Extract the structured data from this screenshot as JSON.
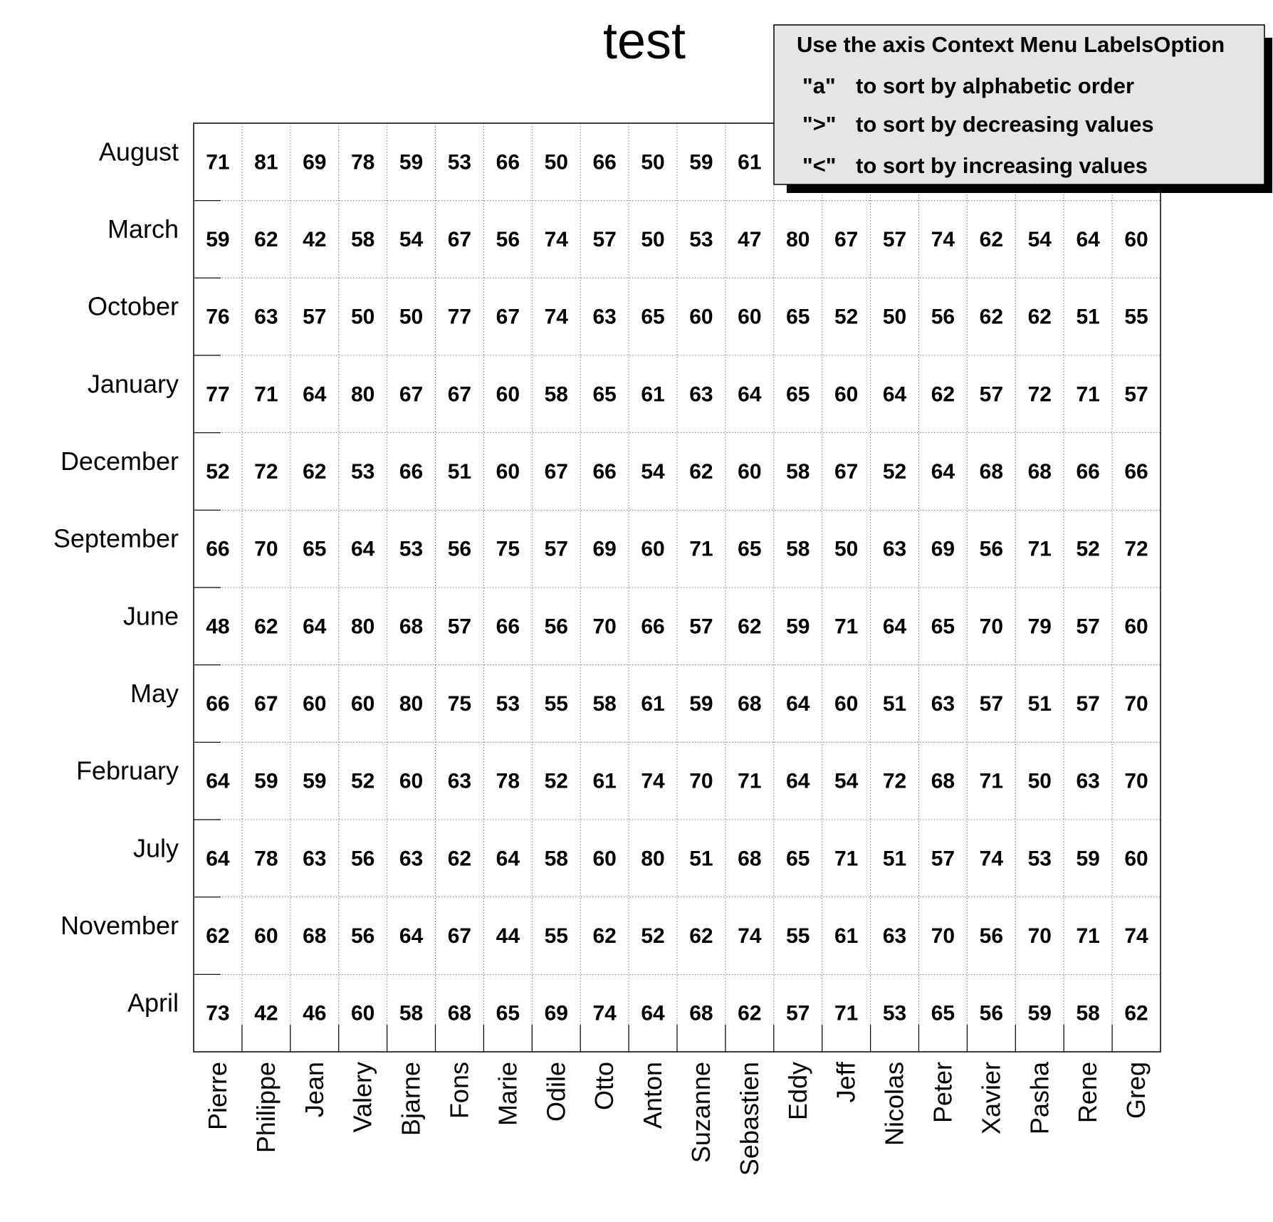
{
  "chart_data": {
    "type": "table",
    "title": "test",
    "rows": [
      "August",
      "March",
      "October",
      "January",
      "December",
      "September",
      "June",
      "May",
      "February",
      "July",
      "November",
      "April"
    ],
    "columns": [
      "Pierre",
      "Philippe",
      "Jean",
      "Valery",
      "Bjarne",
      "Fons",
      "Marie",
      "Odile",
      "Otto",
      "Anton",
      "Suzanne",
      "Sebastien",
      "Eddy",
      "Jeff",
      "Nicolas",
      "Peter",
      "Xavier",
      "Pasha",
      "Rene",
      "Greg"
    ],
    "values": [
      [
        71,
        81,
        69,
        78,
        59,
        53,
        66,
        50,
        66,
        50,
        59,
        61,
        null,
        null,
        null,
        null,
        null,
        null,
        null,
        null
      ],
      [
        59,
        62,
        42,
        58,
        54,
        67,
        56,
        74,
        57,
        50,
        53,
        47,
        80,
        67,
        57,
        74,
        62,
        54,
        64,
        60
      ],
      [
        76,
        63,
        57,
        50,
        50,
        77,
        67,
        74,
        63,
        65,
        60,
        60,
        65,
        52,
        50,
        56,
        62,
        62,
        51,
        55
      ],
      [
        77,
        71,
        64,
        80,
        67,
        67,
        60,
        58,
        65,
        61,
        63,
        64,
        65,
        60,
        64,
        62,
        57,
        72,
        71,
        57
      ],
      [
        52,
        72,
        62,
        53,
        66,
        51,
        60,
        67,
        66,
        54,
        62,
        60,
        58,
        67,
        52,
        64,
        68,
        68,
        66,
        66
      ],
      [
        66,
        70,
        65,
        64,
        53,
        56,
        75,
        57,
        69,
        60,
        71,
        65,
        58,
        50,
        63,
        69,
        56,
        71,
        52,
        72
      ],
      [
        48,
        62,
        64,
        80,
        68,
        57,
        66,
        56,
        70,
        66,
        57,
        62,
        59,
        71,
        64,
        65,
        70,
        79,
        57,
        60
      ],
      [
        66,
        67,
        60,
        60,
        80,
        75,
        53,
        55,
        58,
        61,
        59,
        68,
        64,
        60,
        51,
        63,
        57,
        51,
        57,
        70
      ],
      [
        64,
        59,
        59,
        52,
        60,
        63,
        78,
        52,
        61,
        74,
        70,
        71,
        64,
        54,
        72,
        68,
        71,
        50,
        63,
        70
      ],
      [
        64,
        78,
        63,
        56,
        63,
        62,
        64,
        58,
        60,
        80,
        51,
        68,
        65,
        71,
        51,
        57,
        74,
        53,
        59,
        60
      ],
      [
        62,
        60,
        68,
        56,
        64,
        67,
        44,
        55,
        62,
        52,
        62,
        74,
        55,
        61,
        63,
        70,
        56,
        70,
        71,
        74
      ],
      [
        73,
        42,
        46,
        60,
        58,
        68,
        65,
        69,
        74,
        64,
        68,
        62,
        57,
        71,
        53,
        65,
        56,
        59,
        58,
        62
      ]
    ],
    "grid": true,
    "legend": {
      "placement": "top-right",
      "heading": "Use the axis Context Menu LabelsOption",
      "lines": [
        {
          "key": "\"a\"",
          "text": "to sort by alphabetic order"
        },
        {
          "key": "\">\"",
          "text": "to sort by decreasing values"
        },
        {
          "key": "\"<\"",
          "text": "to sort by increasing values"
        }
      ]
    }
  }
}
